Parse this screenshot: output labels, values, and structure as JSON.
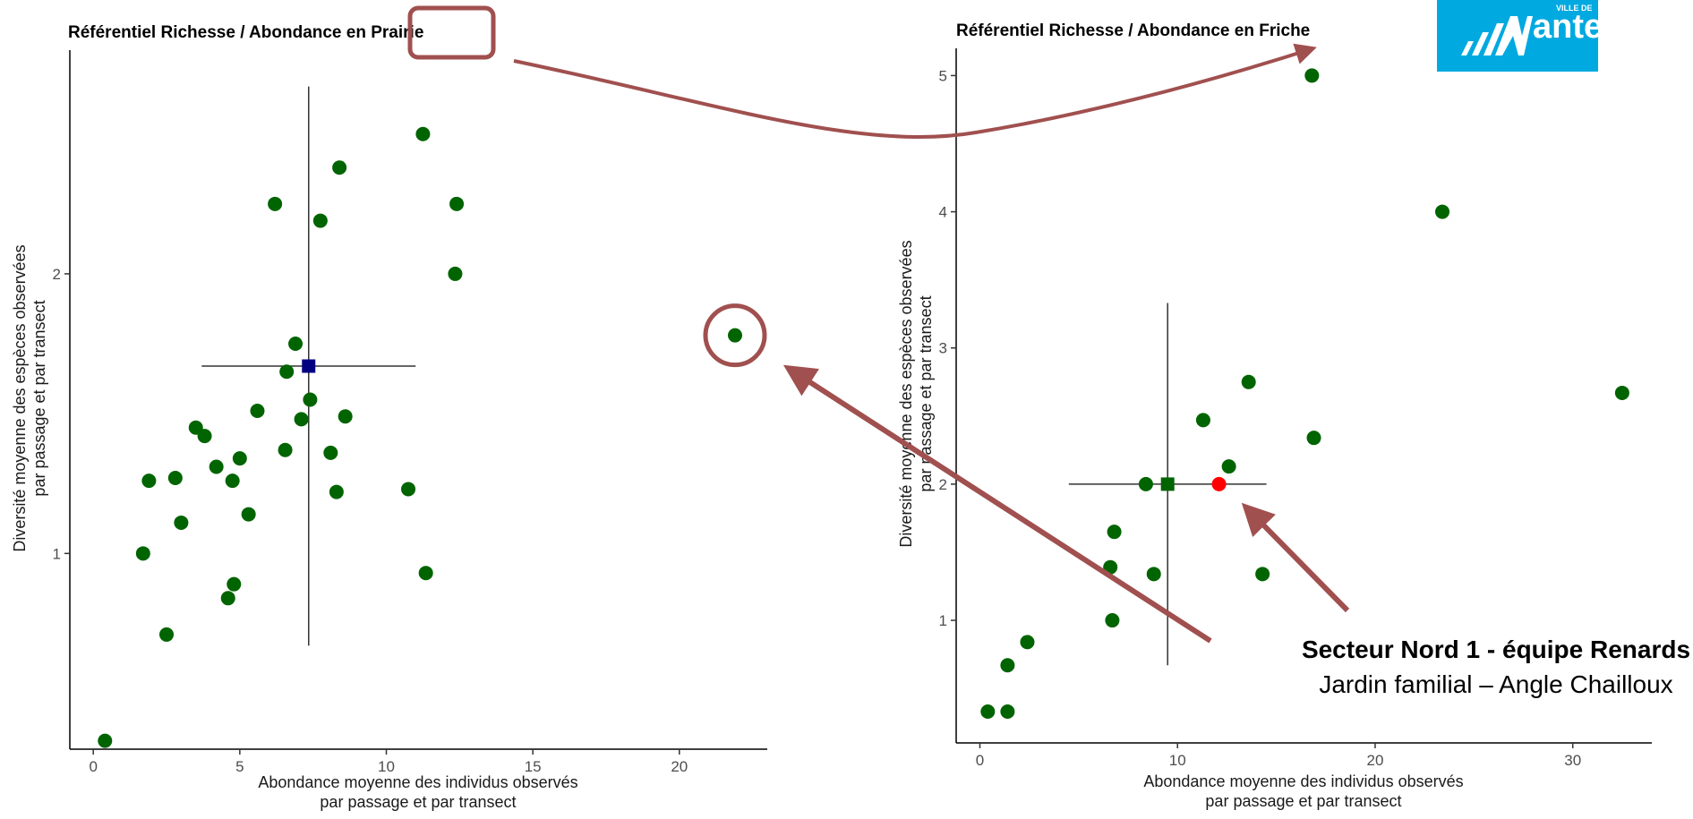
{
  "chart_data": [
    {
      "type": "scatter",
      "title": "Référentiel Richesse / Abondance en Prairie",
      "title_highlight": "Prairie",
      "xlabel": [
        "Abondance moyenne des individus observés",
        "par passage et par transect"
      ],
      "ylabel": [
        "Diversité moyenne des espèces observées",
        "par passage et par transect"
      ],
      "xlim": [
        -0.8,
        23
      ],
      "ylim": [
        0.3,
        2.8
      ],
      "xticks": [
        0,
        5,
        10,
        15,
        20
      ],
      "yticks": [
        1,
        2
      ],
      "grid": false,
      "point_color": "#006400",
      "points": [
        {
          "x": 0.4,
          "y": 0.33
        },
        {
          "x": 1.7,
          "y": 1.0
        },
        {
          "x": 1.9,
          "y": 1.26
        },
        {
          "x": 2.5,
          "y": 0.71
        },
        {
          "x": 2.8,
          "y": 1.27
        },
        {
          "x": 3.0,
          "y": 1.11
        },
        {
          "x": 3.5,
          "y": 1.45
        },
        {
          "x": 3.8,
          "y": 1.42
        },
        {
          "x": 4.2,
          "y": 1.31
        },
        {
          "x": 4.6,
          "y": 0.84
        },
        {
          "x": 4.75,
          "y": 1.26
        },
        {
          "x": 4.8,
          "y": 0.89
        },
        {
          "x": 5.0,
          "y": 1.34
        },
        {
          "x": 5.3,
          "y": 1.14
        },
        {
          "x": 5.6,
          "y": 1.51
        },
        {
          "x": 6.2,
          "y": 2.25
        },
        {
          "x": 6.55,
          "y": 1.37
        },
        {
          "x": 6.6,
          "y": 1.65
        },
        {
          "x": 6.9,
          "y": 1.75
        },
        {
          "x": 7.1,
          "y": 1.48
        },
        {
          "x": 7.4,
          "y": 1.55
        },
        {
          "x": 7.75,
          "y": 2.19
        },
        {
          "x": 8.1,
          "y": 1.36
        },
        {
          "x": 8.3,
          "y": 1.22
        },
        {
          "x": 8.4,
          "y": 2.38
        },
        {
          "x": 8.6,
          "y": 1.49
        },
        {
          "x": 10.75,
          "y": 1.23
        },
        {
          "x": 11.25,
          "y": 2.5
        },
        {
          "x": 11.35,
          "y": 0.93
        },
        {
          "x": 12.35,
          "y": 2.0
        },
        {
          "x": 12.4,
          "y": 2.25
        },
        {
          "x": 21.9,
          "y": 1.78
        }
      ],
      "highlight_point": {
        "x": 21.9,
        "y": 1.78
      },
      "mean": {
        "x": 7.35,
        "y": 1.67,
        "color": "#000080",
        "x_range": [
          3.7,
          11.0
        ],
        "y_range": [
          0.67,
          2.67
        ]
      }
    },
    {
      "type": "scatter",
      "title": "Référentiel Richesse / Abondance en Friche",
      "xlabel": [
        "Abondance moyenne des individus observés",
        "par passage et par transect"
      ],
      "ylabel": [
        "Diversité moyenne des espèces observées",
        "par passage et par transect"
      ],
      "xlim": [
        -1.2,
        34
      ],
      "ylim": [
        0.1,
        5.2
      ],
      "xticks": [
        0,
        10,
        20,
        30
      ],
      "yticks": [
        1,
        2,
        3,
        4,
        5
      ],
      "grid": false,
      "point_color": "#006400",
      "points": [
        {
          "x": 0.4,
          "y": 0.33
        },
        {
          "x": 1.4,
          "y": 0.33
        },
        {
          "x": 1.4,
          "y": 0.67
        },
        {
          "x": 2.4,
          "y": 0.84
        },
        {
          "x": 6.6,
          "y": 1.39
        },
        {
          "x": 6.7,
          "y": 1.0
        },
        {
          "x": 6.8,
          "y": 1.65
        },
        {
          "x": 8.4,
          "y": 2.0
        },
        {
          "x": 8.8,
          "y": 1.34
        },
        {
          "x": 11.3,
          "y": 2.47
        },
        {
          "x": 12.6,
          "y": 2.13
        },
        {
          "x": 13.6,
          "y": 2.75
        },
        {
          "x": 14.3,
          "y": 1.34
        },
        {
          "x": 16.8,
          "y": 5.0
        },
        {
          "x": 16.9,
          "y": 2.34
        },
        {
          "x": 23.4,
          "y": 4.0
        },
        {
          "x": 32.5,
          "y": 2.67
        }
      ],
      "focus_point": {
        "x": 12.1,
        "y": 2.0,
        "color": "#ff0000"
      },
      "mean": {
        "x": 9.5,
        "y": 2.0,
        "color": "#006400",
        "x_range": [
          4.5,
          14.5
        ],
        "y_range": [
          0.67,
          3.33
        ]
      }
    }
  ],
  "annotation": {
    "title": "Secteur Nord 1 - équipe Renards",
    "subtitle": "Jardin familial – Angle Chailloux"
  },
  "logo": {
    "small_text": "VILLE DE",
    "text": "antes",
    "background": "#00a9e0"
  },
  "colors": {
    "annotation_arrow": "#a0504f",
    "highlight_outline": "#a0504f"
  }
}
